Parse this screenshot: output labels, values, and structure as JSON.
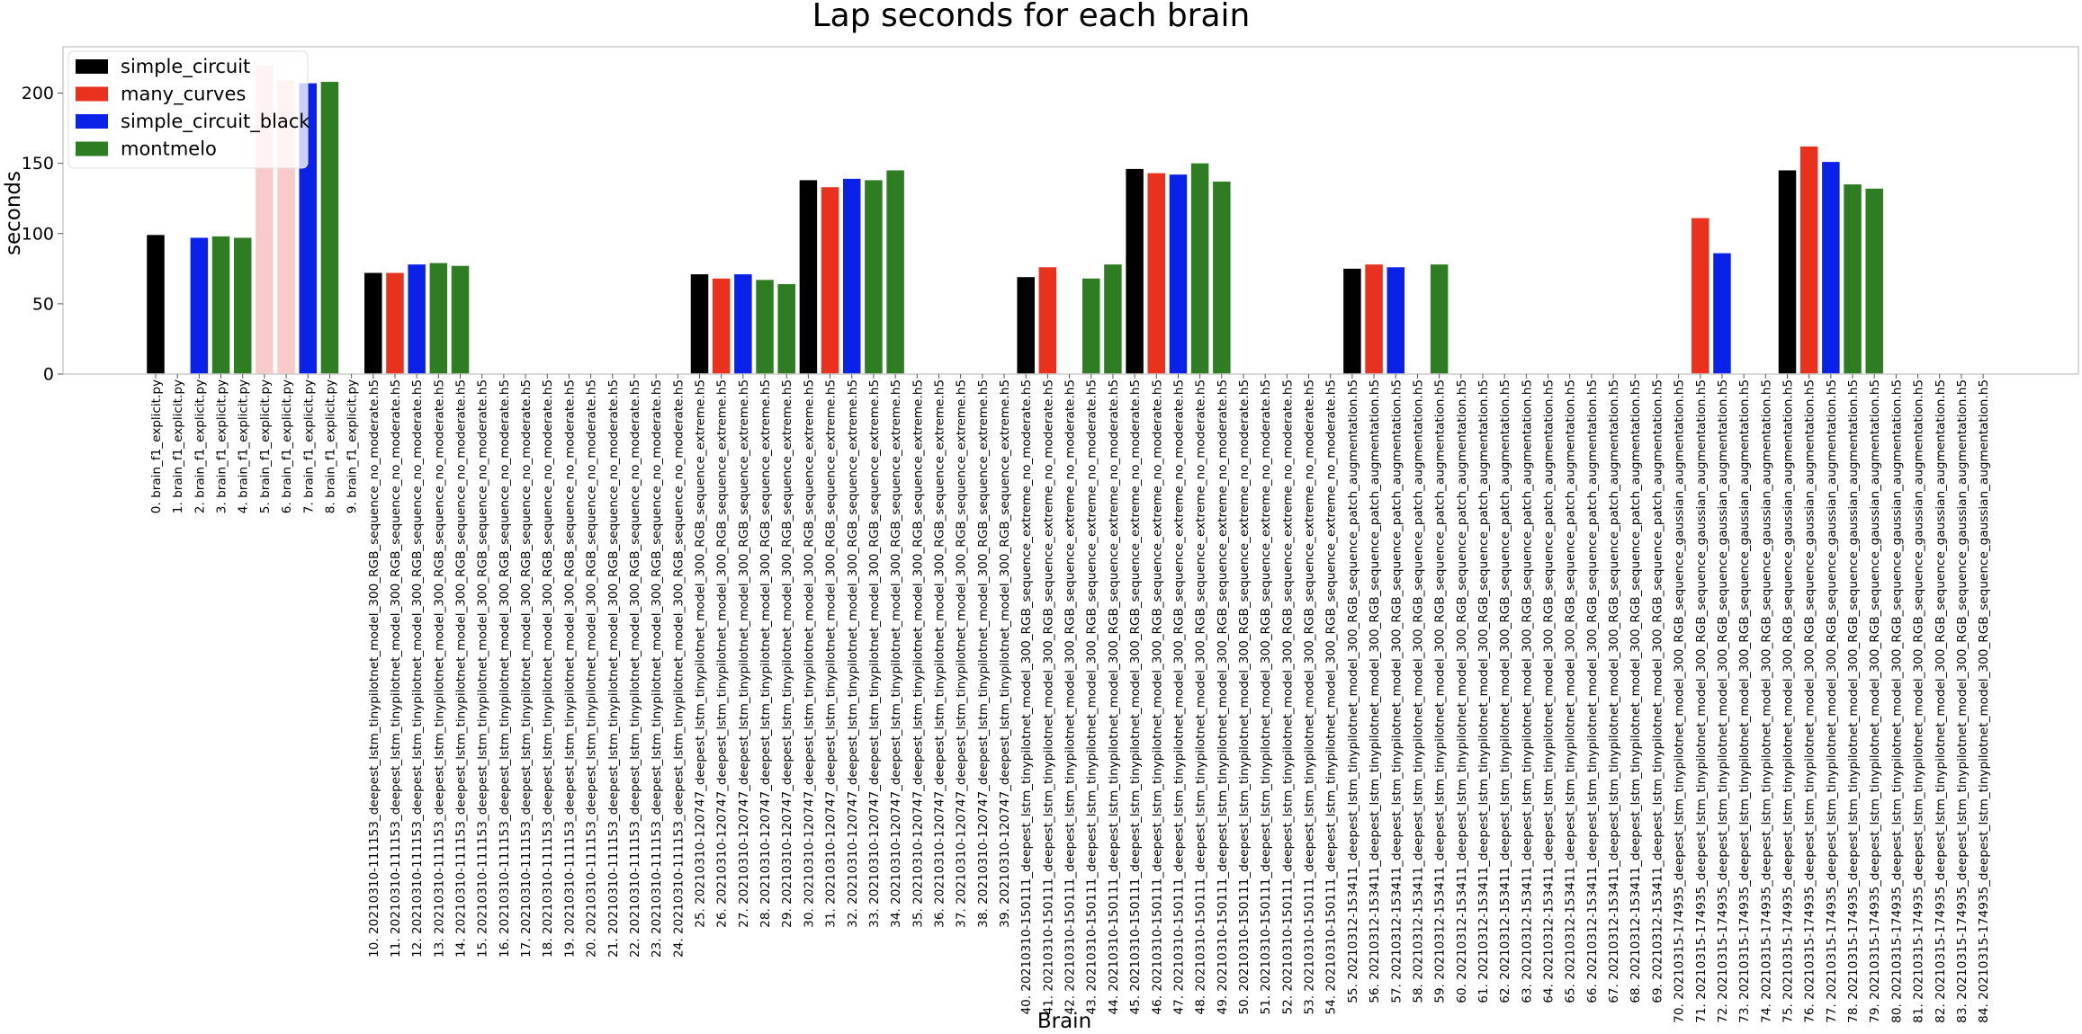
{
  "colors": {
    "simple_circuit": "#000000",
    "many_curves": "#e8321e",
    "simple_circuit_black": "#0a22e8",
    "montmelo": "#2e7d22",
    "many_curves_faded": "#f9caca"
  },
  "chart_data": {
    "type": "bar",
    "title": "Lap seconds for each brain",
    "xlabel": "Brain",
    "ylabel": "seconds",
    "ylim": [
      0,
      233
    ],
    "yticks": [
      0,
      50,
      100,
      150,
      200
    ],
    "grid": false,
    "legend_position": "top-left",
    "legend": [
      "simple_circuit",
      "many_curves",
      "simple_circuit_black",
      "montmelo"
    ],
    "categories": [
      "0. brain_f1_explicit.py",
      "1. brain_f1_explicit.py",
      "2. brain_f1_explicit.py",
      "3. brain_f1_explicit.py",
      "4. brain_f1_explicit.py",
      "5. brain_f1_explicit.py",
      "6. brain_f1_explicit.py",
      "7. brain_f1_explicit.py",
      "8. brain_f1_explicit.py",
      "9. brain_f1_explicit.py",
      "10. 20210310-111153_deepest_lstm_tinypilotnet_model_300_RGB_sequence_no_moderate.h5",
      "11. 20210310-111153_deepest_lstm_tinypilotnet_model_300_RGB_sequence_no_moderate.h5",
      "12. 20210310-111153_deepest_lstm_tinypilotnet_model_300_RGB_sequence_no_moderate.h5",
      "13. 20210310-111153_deepest_lstm_tinypilotnet_model_300_RGB_sequence_no_moderate.h5",
      "14. 20210310-111153_deepest_lstm_tinypilotnet_model_300_RGB_sequence_no_moderate.h5",
      "15. 20210310-111153_deepest_lstm_tinypilotnet_model_300_RGB_sequence_no_moderate.h5",
      "16. 20210310-111153_deepest_lstm_tinypilotnet_model_300_RGB_sequence_no_moderate.h5",
      "17. 20210310-111153_deepest_lstm_tinypilotnet_model_300_RGB_sequence_no_moderate.h5",
      "18. 20210310-111153_deepest_lstm_tinypilotnet_model_300_RGB_sequence_no_moderate.h5",
      "19. 20210310-111153_deepest_lstm_tinypilotnet_model_300_RGB_sequence_no_moderate.h5",
      "20. 20210310-111153_deepest_lstm_tinypilotnet_model_300_RGB_sequence_no_moderate.h5",
      "21. 20210310-111153_deepest_lstm_tinypilotnet_model_300_RGB_sequence_no_moderate.h5",
      "22. 20210310-111153_deepest_lstm_tinypilotnet_model_300_RGB_sequence_no_moderate.h5",
      "23. 20210310-111153_deepest_lstm_tinypilotnet_model_300_RGB_sequence_no_moderate.h5",
      "24. 20210310-111153_deepest_lstm_tinypilotnet_model_300_RGB_sequence_no_moderate.h5",
      "25. 20210310-120747_deepest_lstm_tinypilotnet_model_300_RGB_sequence_extreme.h5",
      "26. 20210310-120747_deepest_lstm_tinypilotnet_model_300_RGB_sequence_extreme.h5",
      "27. 20210310-120747_deepest_lstm_tinypilotnet_model_300_RGB_sequence_extreme.h5",
      "28. 20210310-120747_deepest_lstm_tinypilotnet_model_300_RGB_sequence_extreme.h5",
      "29. 20210310-120747_deepest_lstm_tinypilotnet_model_300_RGB_sequence_extreme.h5",
      "30. 20210310-120747_deepest_lstm_tinypilotnet_model_300_RGB_sequence_extreme.h5",
      "31. 20210310-120747_deepest_lstm_tinypilotnet_model_300_RGB_sequence_extreme.h5",
      "32. 20210310-120747_deepest_lstm_tinypilotnet_model_300_RGB_sequence_extreme.h5",
      "33. 20210310-120747_deepest_lstm_tinypilotnet_model_300_RGB_sequence_extreme.h5",
      "34. 20210310-120747_deepest_lstm_tinypilotnet_model_300_RGB_sequence_extreme.h5",
      "35. 20210310-120747_deepest_lstm_tinypilotnet_model_300_RGB_sequence_extreme.h5",
      "36. 20210310-120747_deepest_lstm_tinypilotnet_model_300_RGB_sequence_extreme.h5",
      "37. 20210310-120747_deepest_lstm_tinypilotnet_model_300_RGB_sequence_extreme.h5",
      "38. 20210310-120747_deepest_lstm_tinypilotnet_model_300_RGB_sequence_extreme.h5",
      "39. 20210310-120747_deepest_lstm_tinypilotnet_model_300_RGB_sequence_extreme.h5",
      "40. 20210310-150111_deepest_lstm_tinypilotnet_model_300_RGB_sequence_extreme_no_moderate.h5",
      "41. 20210310-150111_deepest_lstm_tinypilotnet_model_300_RGB_sequence_extreme_no_moderate.h5",
      "42. 20210310-150111_deepest_lstm_tinypilotnet_model_300_RGB_sequence_extreme_no_moderate.h5",
      "43. 20210310-150111_deepest_lstm_tinypilotnet_model_300_RGB_sequence_extreme_no_moderate.h5",
      "44. 20210310-150111_deepest_lstm_tinypilotnet_model_300_RGB_sequence_extreme_no_moderate.h5",
      "45. 20210310-150111_deepest_lstm_tinypilotnet_model_300_RGB_sequence_extreme_no_moderate.h5",
      "46. 20210310-150111_deepest_lstm_tinypilotnet_model_300_RGB_sequence_extreme_no_moderate.h5",
      "47. 20210310-150111_deepest_lstm_tinypilotnet_model_300_RGB_sequence_extreme_no_moderate.h5",
      "48. 20210310-150111_deepest_lstm_tinypilotnet_model_300_RGB_sequence_extreme_no_moderate.h5",
      "49. 20210310-150111_deepest_lstm_tinypilotnet_model_300_RGB_sequence_extreme_no_moderate.h5",
      "50. 20210310-150111_deepest_lstm_tinypilotnet_model_300_RGB_sequence_extreme_no_moderate.h5",
      "51. 20210310-150111_deepest_lstm_tinypilotnet_model_300_RGB_sequence_extreme_no_moderate.h5",
      "52. 20210310-150111_deepest_lstm_tinypilotnet_model_300_RGB_sequence_extreme_no_moderate.h5",
      "53. 20210310-150111_deepest_lstm_tinypilotnet_model_300_RGB_sequence_extreme_no_moderate.h5",
      "54. 20210310-150111_deepest_lstm_tinypilotnet_model_300_RGB_sequence_extreme_no_moderate.h5",
      "55. 20210312-153411_deepest_lstm_tinypilotnet_model_300_RGB_sequence_patch_augmentation.h5",
      "56. 20210312-153411_deepest_lstm_tinypilotnet_model_300_RGB_sequence_patch_augmentation.h5",
      "57. 20210312-153411_deepest_lstm_tinypilotnet_model_300_RGB_sequence_patch_augmentation.h5",
      "58. 20210312-153411_deepest_lstm_tinypilotnet_model_300_RGB_sequence_patch_augmentation.h5",
      "59. 20210312-153411_deepest_lstm_tinypilotnet_model_300_RGB_sequence_patch_augmentation.h5",
      "60. 20210312-153411_deepest_lstm_tinypilotnet_model_300_RGB_sequence_patch_augmentation.h5",
      "61. 20210312-153411_deepest_lstm_tinypilotnet_model_300_RGB_sequence_patch_augmentation.h5",
      "62. 20210312-153411_deepest_lstm_tinypilotnet_model_300_RGB_sequence_patch_augmentation.h5",
      "63. 20210312-153411_deepest_lstm_tinypilotnet_model_300_RGB_sequence_patch_augmentation.h5",
      "64. 20210312-153411_deepest_lstm_tinypilotnet_model_300_RGB_sequence_patch_augmentation.h5",
      "65. 20210312-153411_deepest_lstm_tinypilotnet_model_300_RGB_sequence_patch_augmentation.h5",
      "66. 20210312-153411_deepest_lstm_tinypilotnet_model_300_RGB_sequence_patch_augmentation.h5",
      "67. 20210312-153411_deepest_lstm_tinypilotnet_model_300_RGB_sequence_patch_augmentation.h5",
      "68. 20210312-153411_deepest_lstm_tinypilotnet_model_300_RGB_sequence_patch_augmentation.h5",
      "69. 20210312-153411_deepest_lstm_tinypilotnet_model_300_RGB_sequence_patch_augmentation.h5",
      "70. 20210315-174935_deepest_lstm_tinypilotnet_model_300_RGB_sequence_gaussian_augmentation.h5",
      "71. 20210315-174935_deepest_lstm_tinypilotnet_model_300_RGB_sequence_gaussian_augmentation.h5",
      "72. 20210315-174935_deepest_lstm_tinypilotnet_model_300_RGB_sequence_gaussian_augmentation.h5",
      "73. 20210315-174935_deepest_lstm_tinypilotnet_model_300_RGB_sequence_gaussian_augmentation.h5",
      "74. 20210315-174935_deepest_lstm_tinypilotnet_model_300_RGB_sequence_gaussian_augmentation.h5",
      "75. 20210315-174935_deepest_lstm_tinypilotnet_model_300_RGB_sequence_gaussian_augmentation.h5",
      "76. 20210315-174935_deepest_lstm_tinypilotnet_model_300_RGB_sequence_gaussian_augmentation.h5",
      "77. 20210315-174935_deepest_lstm_tinypilotnet_model_300_RGB_sequence_gaussian_augmentation.h5",
      "78. 20210315-174935_deepest_lstm_tinypilotnet_model_300_RGB_sequence_gaussian_augmentation.h5",
      "79. 20210315-174935_deepest_lstm_tinypilotnet_model_300_RGB_sequence_gaussian_augmentation.h5",
      "80. 20210315-174935_deepest_lstm_tinypilotnet_model_300_RGB_sequence_gaussian_augmentation.h5",
      "81. 20210315-174935_deepest_lstm_tinypilotnet_model_300_RGB_sequence_gaussian_augmentation.h5",
      "82. 20210315-174935_deepest_lstm_tinypilotnet_model_300_RGB_sequence_gaussian_augmentation.h5",
      "83. 20210315-174935_deepest_lstm_tinypilotnet_model_300_RGB_sequence_gaussian_augmentation.h5",
      "84. 20210315-174935_deepest_lstm_tinypilotnet_model_300_RGB_sequence_gaussian_augmentation.h5"
    ],
    "circuit_cycle": [
      "simple_circuit",
      "many_curves",
      "simple_circuit_black",
      "montmelo",
      "montmelo"
    ],
    "values": [
      99,
      null,
      97,
      98,
      97,
      220,
      209,
      207,
      208,
      null,
      72,
      72,
      78,
      79,
      77,
      null,
      null,
      null,
      null,
      null,
      null,
      null,
      null,
      null,
      null,
      71,
      68,
      71,
      67,
      64,
      138,
      133,
      139,
      138,
      145,
      null,
      null,
      null,
      null,
      null,
      69,
      76,
      null,
      68,
      78,
      146,
      143,
      142,
      150,
      137,
      null,
      null,
      null,
      null,
      null,
      75,
      78,
      76,
      null,
      78,
      null,
      null,
      null,
      null,
      null,
      null,
      null,
      null,
      null,
      null,
      null,
      111,
      86,
      null,
      null,
      145,
      162,
      151,
      135,
      132,
      null,
      null,
      null,
      null,
      null
    ],
    "faded_indices": [
      5,
      6
    ]
  }
}
